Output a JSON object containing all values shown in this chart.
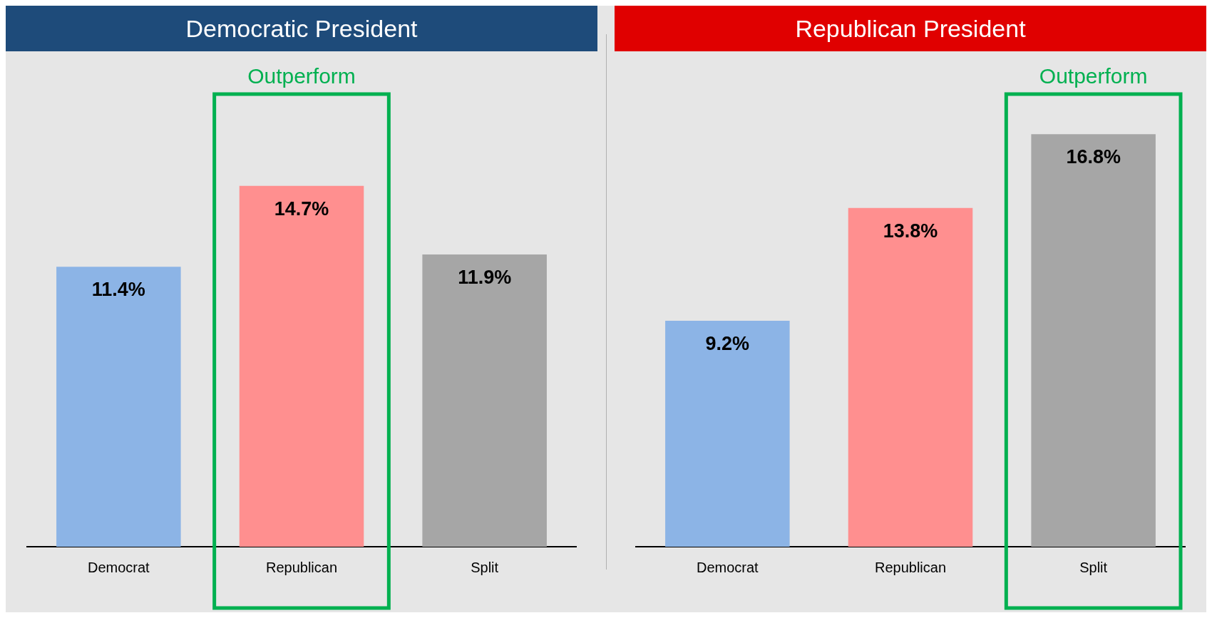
{
  "chart_data": [
    {
      "type": "bar",
      "title": "Democratic President",
      "categories": [
        "Democrat",
        "Republican",
        "Split"
      ],
      "values": [
        11.4,
        14.7,
        11.9
      ],
      "colors": [
        "#8cb4e6",
        "#ff8f8f",
        "#a6a6a6"
      ],
      "value_labels": [
        "11.4%",
        "14.7%",
        "11.9%"
      ],
      "annotations": [
        "Outperform"
      ]
    },
    {
      "type": "bar",
      "title": "Republican President",
      "categories": [
        "Democrat",
        "Republican",
        "Split"
      ],
      "values": [
        9.2,
        13.8,
        16.8
      ],
      "colors": [
        "#8cb4e6",
        "#ff8f8f",
        "#a6a6a6"
      ],
      "value_labels": [
        "9.2%",
        "13.8%",
        "16.8%"
      ],
      "annotations": [
        "Outperform"
      ]
    }
  ]
}
